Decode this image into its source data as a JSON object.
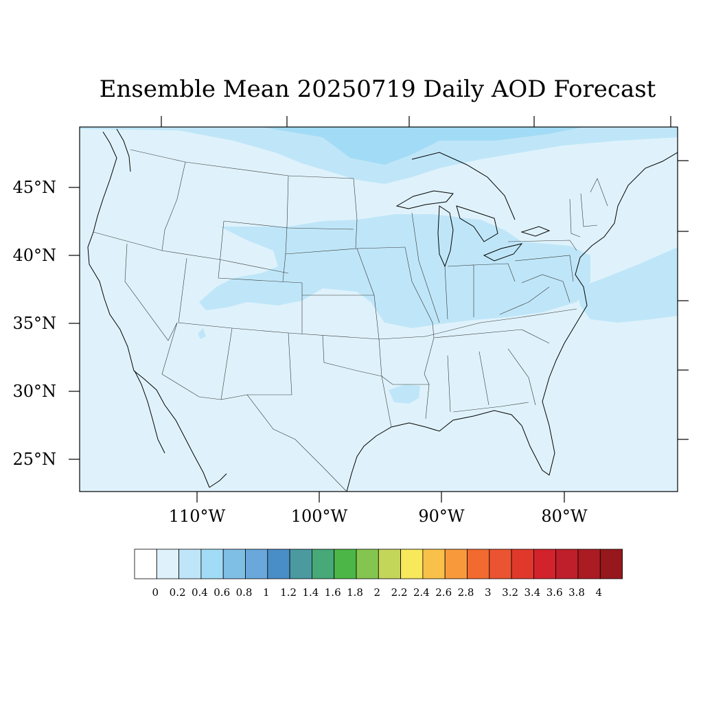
{
  "title": "Ensemble Mean 20250719 Daily AOD Forecast",
  "map": {
    "background_color": "#dff2fb",
    "plume_colors": {
      "light": "#bfe6f8",
      "medium": "#a2dbf5"
    },
    "lat_labels": [
      "45°N",
      "40°N",
      "35°N",
      "30°N",
      "25°N"
    ],
    "lon_labels": [
      "110°W",
      "100°W",
      "90°W",
      "80°W"
    ]
  },
  "colorbar": {
    "colors": [
      "#ffffff",
      "#dff2fb",
      "#bfe6f8",
      "#a2dbf5",
      "#80bfe5",
      "#6aa8dc",
      "#4a8ec8",
      "#4a9aa0",
      "#47a878",
      "#4cb747",
      "#84c550",
      "#c4d65a",
      "#f7e85c",
      "#f9c14a",
      "#f89a3c",
      "#f26a30",
      "#ea5430",
      "#e0392c",
      "#d2222c",
      "#bf1f2a",
      "#aa1c22",
      "#96181c"
    ],
    "labels": [
      "0",
      "0.2",
      "0.4",
      "0.6",
      "0.8",
      "1",
      "1.2",
      "1.4",
      "1.6",
      "1.8",
      "2",
      "2.2",
      "2.4",
      "2.6",
      "2.8",
      "3",
      "3.2",
      "3.4",
      "3.6",
      "3.8",
      "4"
    ]
  }
}
